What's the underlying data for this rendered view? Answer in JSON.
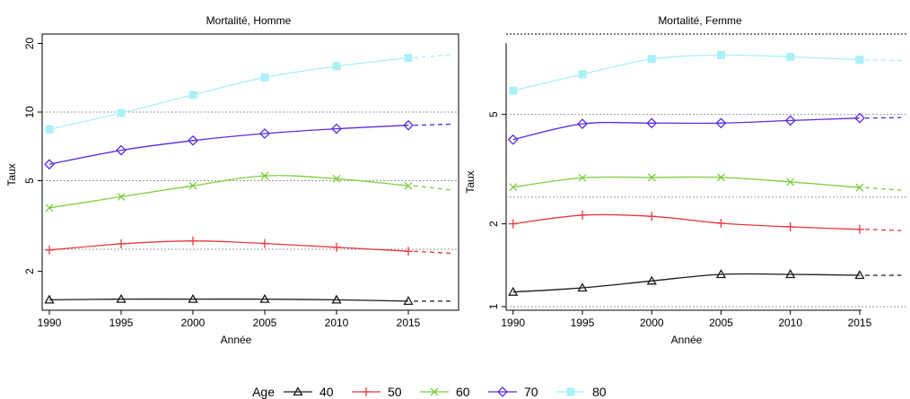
{
  "colors": {
    "40": "#1a1a1a",
    "50": "#e8383d",
    "60": "#7ccd3c",
    "70": "#5b2be0",
    "80": "#a9f0f7",
    "reference_line": "#9a9a9a"
  },
  "legend": {
    "title": "Age",
    "entries": [
      {
        "label": "40",
        "marker": "triangle"
      },
      {
        "label": "50",
        "marker": "plus"
      },
      {
        "label": "60",
        "marker": "cross"
      },
      {
        "label": "70",
        "marker": "diamond"
      },
      {
        "label": "80",
        "marker": "square"
      }
    ],
    "position": "bottom-center"
  },
  "chart_data": [
    {
      "type": "line",
      "title": "Mortalité, Homme",
      "xlabel": "Année",
      "ylabel": "Taux",
      "y_scale": "log",
      "xlim": [
        1989.5,
        2018.5
      ],
      "ylim": [
        1.35,
        22
      ],
      "x_ticks": [
        1990,
        1995,
        2000,
        2005,
        2010,
        2015
      ],
      "y_ticks": [
        2,
        5,
        10,
        20
      ],
      "reference_lines_y": [
        2.5,
        5,
        10
      ],
      "projection_to": 2018,
      "x": [
        1990,
        1995,
        2000,
        2005,
        2010,
        2015
      ],
      "series": [
        {
          "name": "40",
          "marker": "triangle",
          "values": [
            1.5,
            1.51,
            1.51,
            1.51,
            1.5,
            1.48
          ],
          "projection": 1.48
        },
        {
          "name": "50",
          "marker": "plus",
          "values": [
            2.48,
            2.64,
            2.72,
            2.65,
            2.55,
            2.45
          ],
          "projection": 2.4
        },
        {
          "name": "60",
          "marker": "cross",
          "values": [
            3.8,
            4.25,
            4.75,
            5.25,
            5.1,
            4.75
          ],
          "projection": 4.55
        },
        {
          "name": "70",
          "marker": "diamond",
          "values": [
            5.9,
            6.8,
            7.5,
            8.05,
            8.45,
            8.75
          ],
          "projection": 8.85
        },
        {
          "name": "80",
          "marker": "square",
          "values": [
            8.4,
            9.9,
            11.9,
            14.2,
            15.9,
            17.3
          ],
          "projection": 17.9
        }
      ]
    },
    {
      "type": "line",
      "title": "Mortalité, Femme",
      "xlabel": "Année",
      "ylabel": "Taux",
      "y_scale": "log",
      "xlim": [
        1989.5,
        2018.5
      ],
      "ylim": [
        0.97,
        9.8
      ],
      "x_ticks": [
        1990,
        1995,
        2000,
        2005,
        2010,
        2015
      ],
      "y_ticks": [
        1,
        2,
        5
      ],
      "reference_lines_y": [
        1,
        2.5,
        5,
        10
      ],
      "projection_to": 2018,
      "x": [
        1990,
        1995,
        2000,
        2005,
        2010,
        2015
      ],
      "series": [
        {
          "name": "40",
          "marker": "triangle",
          "values": [
            1.13,
            1.17,
            1.24,
            1.31,
            1.31,
            1.3
          ],
          "projection": 1.3
        },
        {
          "name": "50",
          "marker": "plus",
          "values": [
            2.0,
            2.15,
            2.13,
            2.01,
            1.95,
            1.91
          ],
          "projection": 1.89
        },
        {
          "name": "60",
          "marker": "cross",
          "values": [
            2.72,
            2.94,
            2.95,
            2.95,
            2.84,
            2.71
          ],
          "projection": 2.65
        },
        {
          "name": "70",
          "marker": "diamond",
          "values": [
            4.05,
            4.62,
            4.65,
            4.65,
            4.75,
            4.85
          ],
          "projection": 4.87
        },
        {
          "name": "80",
          "marker": "square",
          "values": [
            6.1,
            7.0,
            7.95,
            8.22,
            8.1,
            7.9
          ],
          "projection": 7.85
        }
      ]
    }
  ]
}
